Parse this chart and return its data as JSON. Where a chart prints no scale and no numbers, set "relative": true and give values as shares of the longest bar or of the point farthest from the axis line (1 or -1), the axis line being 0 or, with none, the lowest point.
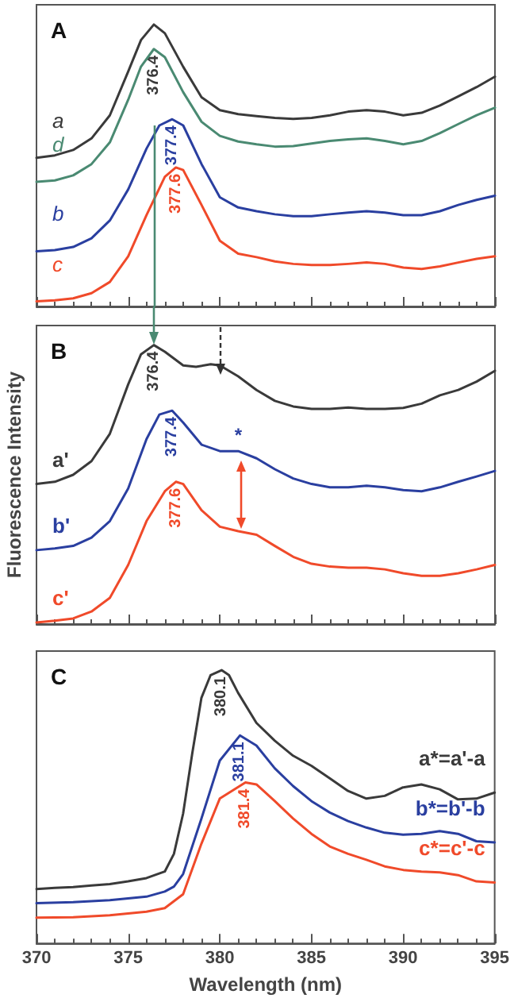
{
  "chart_data": [
    {
      "type": "line",
      "title": "A",
      "relative": true,
      "xlim": [
        370,
        395
      ],
      "xticks": [
        370,
        375,
        380,
        385,
        390,
        395
      ],
      "tick_labels": false,
      "annotations": [
        {
          "text": "376.4",
          "x": 376.4,
          "y": 1.0
        },
        {
          "text": "377.4",
          "x": 377.4,
          "y": 0.664
        },
        {
          "text": "377.6",
          "x": 377.6,
          "y": 0.493
        }
      ],
      "ref_lines": [
        {
          "axis": "x",
          "value": 376.4,
          "color": "#4a8a72"
        }
      ],
      "series": [
        {
          "name": "a",
          "color": "#3a3a3a",
          "x": [
            370,
            371,
            372,
            373,
            374,
            375,
            375.7,
            376.4,
            377,
            378,
            379,
            380,
            381,
            382,
            383,
            384,
            385,
            386,
            387,
            388,
            389,
            390,
            391,
            392,
            393,
            394,
            395
          ],
          "values": [
            0.527,
            0.536,
            0.555,
            0.596,
            0.678,
            0.833,
            0.945,
            1.0,
            0.969,
            0.85,
            0.742,
            0.696,
            0.682,
            0.675,
            0.669,
            0.665,
            0.669,
            0.678,
            0.691,
            0.696,
            0.691,
            0.678,
            0.687,
            0.713,
            0.745,
            0.778,
            0.815
          ]
        },
        {
          "name": "d",
          "color": "#4a8a72",
          "x": [
            370,
            371,
            372,
            373,
            374,
            375,
            375.7,
            376.4,
            377,
            378,
            379,
            380,
            381,
            382,
            383,
            384,
            385,
            386,
            387,
            388,
            389,
            390,
            391,
            392,
            393,
            394,
            395
          ],
          "values": [
            0.442,
            0.447,
            0.465,
            0.505,
            0.582,
            0.733,
            0.851,
            0.913,
            0.884,
            0.76,
            0.655,
            0.605,
            0.585,
            0.575,
            0.567,
            0.569,
            0.578,
            0.587,
            0.593,
            0.596,
            0.587,
            0.575,
            0.587,
            0.615,
            0.647,
            0.678,
            0.705
          ]
        },
        {
          "name": "b",
          "color": "#2a3fa0",
          "x": [
            370,
            371,
            372,
            373,
            374,
            375,
            376,
            376.7,
            377.4,
            378,
            379,
            380,
            381,
            382,
            383,
            384,
            385,
            386,
            387,
            388,
            389,
            390,
            391,
            392,
            393,
            394,
            395
          ],
          "values": [
            0.196,
            0.2,
            0.211,
            0.242,
            0.305,
            0.415,
            0.56,
            0.642,
            0.664,
            0.642,
            0.505,
            0.387,
            0.351,
            0.338,
            0.327,
            0.32,
            0.32,
            0.327,
            0.333,
            0.338,
            0.333,
            0.324,
            0.324,
            0.338,
            0.36,
            0.378,
            0.393
          ]
        },
        {
          "name": "c",
          "color": "#f04a2a",
          "x": [
            370,
            371,
            372,
            373,
            374,
            375,
            376,
            377,
            377.6,
            378,
            379,
            380,
            381,
            382,
            383,
            384,
            385,
            386,
            387,
            388,
            389,
            390,
            391,
            392,
            393,
            394,
            395
          ],
          "values": [
            0.018,
            0.022,
            0.029,
            0.047,
            0.087,
            0.178,
            0.324,
            0.46,
            0.493,
            0.484,
            0.36,
            0.233,
            0.187,
            0.175,
            0.16,
            0.151,
            0.147,
            0.147,
            0.151,
            0.156,
            0.151,
            0.138,
            0.133,
            0.142,
            0.156,
            0.169,
            0.178
          ]
        }
      ]
    },
    {
      "type": "line",
      "title": "B",
      "ylabel": "Fluorescence Intensity",
      "relative": true,
      "xlim": [
        370,
        395
      ],
      "xticks": [
        370,
        375,
        380,
        385,
        390,
        395
      ],
      "tick_labels": false,
      "annotations": [
        {
          "text": "376.4",
          "x": 376.4,
          "y": 1.0
        },
        {
          "text": "377.4",
          "x": 377.4,
          "y": 0.765
        },
        {
          "text": "377.6",
          "x": 377.6,
          "y": 0.51
        },
        {
          "text": "*",
          "x": 381,
          "y": 0.62
        }
      ],
      "series": [
        {
          "name": "a'",
          "color": "#3a3a3a",
          "x": [
            370,
            371,
            372,
            373,
            374,
            375,
            375.7,
            376.4,
            377,
            378,
            378.7,
            379.5,
            380,
            381,
            382,
            383,
            384,
            385,
            386,
            387,
            388,
            389,
            390,
            391,
            392,
            393,
            394,
            395
          ],
          "values": [
            0.502,
            0.51,
            0.535,
            0.584,
            0.682,
            0.859,
            0.967,
            1.0,
            0.976,
            0.927,
            0.922,
            0.931,
            0.927,
            0.888,
            0.839,
            0.8,
            0.78,
            0.771,
            0.771,
            0.776,
            0.771,
            0.771,
            0.775,
            0.79,
            0.82,
            0.839,
            0.869,
            0.908
          ]
        },
        {
          "name": "b'",
          "color": "#2a3fa0",
          "x": [
            370,
            371,
            372,
            373,
            374,
            375,
            376,
            376.7,
            377.4,
            378,
            379,
            380,
            381,
            382,
            383,
            384,
            385,
            386,
            387,
            388,
            389,
            390,
            391,
            392,
            393,
            394,
            395
          ],
          "values": [
            0.265,
            0.271,
            0.28,
            0.31,
            0.369,
            0.486,
            0.663,
            0.751,
            0.765,
            0.722,
            0.643,
            0.62,
            0.62,
            0.594,
            0.555,
            0.522,
            0.502,
            0.49,
            0.49,
            0.496,
            0.49,
            0.48,
            0.476,
            0.49,
            0.51,
            0.529,
            0.549
          ]
        },
        {
          "name": "c'",
          "color": "#f04a2a",
          "x": [
            370,
            371,
            372,
            373,
            374,
            375,
            376,
            377,
            377.6,
            378,
            379,
            380,
            381,
            382,
            383,
            384,
            385,
            386,
            387,
            388,
            389,
            390,
            391,
            392,
            393,
            394,
            395
          ],
          "values": [
            0.006,
            0.012,
            0.02,
            0.045,
            0.094,
            0.212,
            0.369,
            0.476,
            0.51,
            0.502,
            0.408,
            0.349,
            0.333,
            0.32,
            0.28,
            0.241,
            0.216,
            0.206,
            0.202,
            0.202,
            0.196,
            0.182,
            0.173,
            0.173,
            0.182,
            0.196,
            0.212
          ]
        }
      ]
    },
    {
      "type": "line",
      "title": "C",
      "xlabel": "Wavelength (nm)",
      "relative": true,
      "xlim": [
        370,
        395
      ],
      "xticks": [
        370,
        375,
        380,
        385,
        390,
        395
      ],
      "tick_labels": "x",
      "annotations": [
        {
          "text": "380.1",
          "x": 380.1,
          "y": 1.0
        },
        {
          "text": "381.1",
          "x": 381.1,
          "y": 0.761
        },
        {
          "text": "381.4",
          "x": 381.4,
          "y": 0.589
        }
      ],
      "series": [
        {
          "name": "a*=a'-a",
          "color": "#3a3a3a",
          "x": [
            370,
            371,
            372,
            373,
            374,
            375,
            376,
            377,
            377.5,
            378,
            378.5,
            379,
            379.5,
            380.1,
            380.5,
            381,
            382,
            383,
            384,
            385,
            386,
            387,
            388,
            389,
            390,
            391,
            392,
            393,
            394,
            395
          ],
          "values": [
            0.199,
            0.203,
            0.206,
            0.212,
            0.217,
            0.227,
            0.239,
            0.263,
            0.328,
            0.475,
            0.696,
            0.899,
            0.982,
            1.0,
            0.982,
            0.917,
            0.807,
            0.742,
            0.687,
            0.65,
            0.604,
            0.558,
            0.53,
            0.54,
            0.571,
            0.582,
            0.564,
            0.527,
            0.53,
            0.552
          ]
        },
        {
          "name": "b*=b'-b",
          "color": "#2a3fa0",
          "x": [
            370,
            372,
            374,
            376,
            377,
            377.5,
            378,
            379,
            380,
            381.1,
            382,
            383,
            384,
            385,
            386,
            387,
            388,
            389,
            390,
            391,
            392,
            393,
            394,
            395
          ],
          "values": [
            0.147,
            0.151,
            0.158,
            0.171,
            0.19,
            0.208,
            0.254,
            0.457,
            0.669,
            0.761,
            0.724,
            0.641,
            0.576,
            0.521,
            0.479,
            0.448,
            0.424,
            0.405,
            0.398,
            0.401,
            0.411,
            0.401,
            0.374,
            0.37
          ]
        },
        {
          "name": "c*=c'-c",
          "color": "#f04a2a",
          "x": [
            370,
            372,
            374,
            376,
            377,
            378,
            379,
            380,
            381.4,
            382,
            383,
            384,
            385,
            386,
            387,
            388,
            389,
            390,
            391,
            392,
            393,
            394,
            395
          ],
          "values": [
            0.094,
            0.096,
            0.103,
            0.116,
            0.129,
            0.18,
            0.365,
            0.53,
            0.589,
            0.582,
            0.521,
            0.457,
            0.401,
            0.355,
            0.328,
            0.306,
            0.282,
            0.269,
            0.263,
            0.26,
            0.25,
            0.227,
            0.223
          ]
        }
      ]
    }
  ]
}
